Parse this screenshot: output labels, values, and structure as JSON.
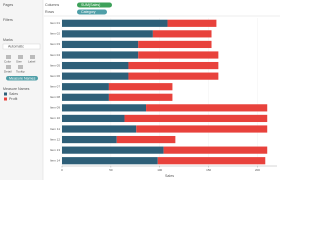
{
  "ui": {
    "pages": "Pages",
    "filters": "Filters",
    "marks": "Marks",
    "mark_type": "Automatic",
    "mark_buttons": [
      "Color",
      "Size",
      "Label",
      "Detail",
      "Tooltip"
    ],
    "marks_pill": "Measure Names",
    "legend_title": "Measure Names",
    "columns": "Columns",
    "columns_pill": "SUM(Sales)",
    "rows": "Rows",
    "rows_pill": "Category"
  },
  "chart_data": {
    "type": "stacked-bar-horizontal",
    "x_label": "Sales",
    "categories": [
      "Item 01",
      "Item 02",
      "Item 03",
      "Item 04",
      "Item 05",
      "Item 06",
      "Item 07",
      "Item 08",
      "Item 09",
      "Item 10",
      "Item 11",
      "Item 12",
      "Item 13",
      "Item 14"
    ],
    "series": [
      {
        "name": "Sales",
        "color": "#2e5f78",
        "values": [
          108,
          93,
          78,
          78,
          68,
          68,
          48,
          48,
          86,
          64,
          76,
          56,
          104,
          98
        ]
      },
      {
        "name": "Profit",
        "color": "#e8423c",
        "values": [
          50,
          60,
          75,
          82,
          92,
          92,
          65,
          65,
          124,
          146,
          134,
          60,
          106,
          110
        ]
      }
    ],
    "xlim": [
      0,
      220
    ],
    "xticks": [
      0,
      50,
      100,
      150,
      200
    ],
    "grid": true
  }
}
